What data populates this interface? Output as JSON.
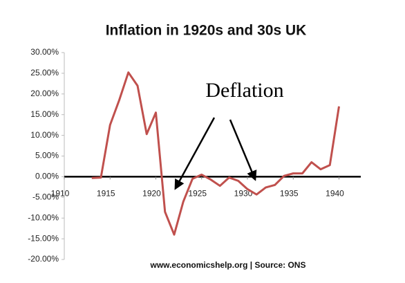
{
  "chart_data": {
    "type": "line",
    "title": "Inflation in 1920s and 30s UK",
    "annotation": "Deflation",
    "source": "www.economicshelp.org | Source: ONS",
    "x": [
      1913,
      1914,
      1915,
      1916,
      1917,
      1918,
      1919,
      1920,
      1921,
      1922,
      1923,
      1924,
      1925,
      1926,
      1927,
      1928,
      1929,
      1930,
      1931,
      1932,
      1933,
      1934,
      1935,
      1936,
      1937,
      1938,
      1939,
      1940
    ],
    "series": [
      {
        "name": "Inflation",
        "color": "#c0504d",
        "values": [
          -0.3,
          -0.2,
          12.5,
          18.5,
          25.2,
          22,
          10.3,
          15.5,
          -8.5,
          -14,
          -6,
          -0.5,
          0.5,
          -0.7,
          -2.2,
          -0.2,
          -1,
          -3,
          -4.3,
          -2.6,
          -2,
          0.2,
          0.8,
          0.8,
          3.5,
          1.8,
          2.8,
          17
        ]
      }
    ],
    "xlim": [
      1910,
      1942
    ],
    "xticks": [
      1910,
      1915,
      1920,
      1925,
      1930,
      1935,
      1940
    ],
    "ylim": [
      -20,
      30
    ],
    "yticks": [
      {
        "value": 30,
        "label": "30.00%"
      },
      {
        "value": 25,
        "label": "25.00%"
      },
      {
        "value": 20,
        "label": "20.00%"
      },
      {
        "value": 15,
        "label": "15.00%"
      },
      {
        "value": 10,
        "label": "10.00%"
      },
      {
        "value": 5,
        "label": "5.00%"
      },
      {
        "value": 0,
        "label": "0.00%"
      },
      {
        "value": -5,
        "label": "-5.00%"
      },
      {
        "value": -10,
        "label": "-10.00%"
      },
      {
        "value": -15,
        "label": "-15.00%"
      },
      {
        "value": -20,
        "label": "-20.00%"
      }
    ],
    "grid": false
  }
}
